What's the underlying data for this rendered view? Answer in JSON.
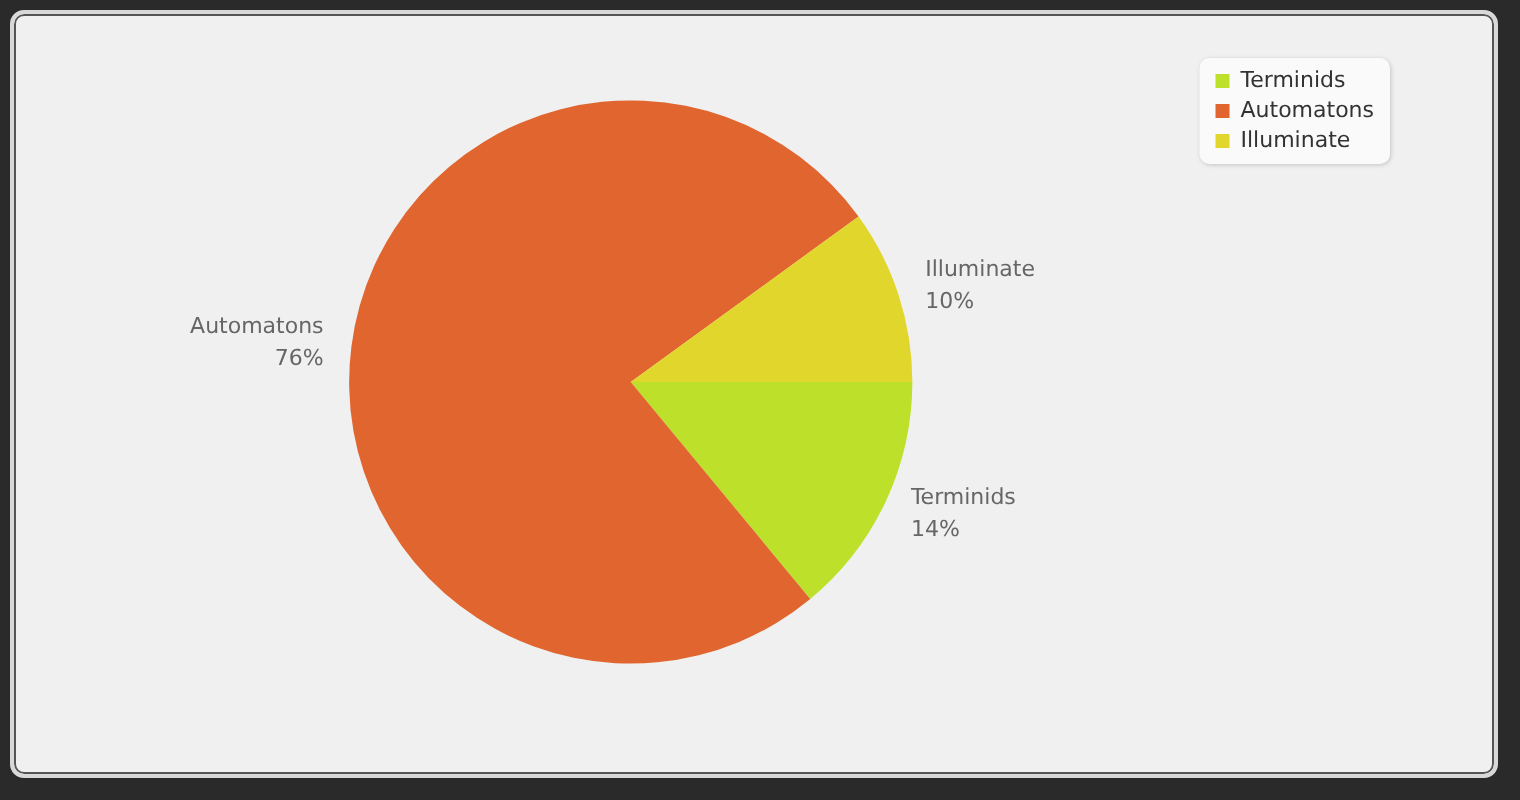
{
  "chart_data": {
    "type": "pie",
    "categories": [
      "Terminids",
      "Automatons",
      "Illuminate"
    ],
    "values": [
      14,
      76,
      10
    ],
    "colors": [
      "#bde12b",
      "#e1652e",
      "#e1d62c"
    ],
    "value_labels": [
      "14%",
      "76%",
      "10%"
    ],
    "legend": "top right"
  }
}
